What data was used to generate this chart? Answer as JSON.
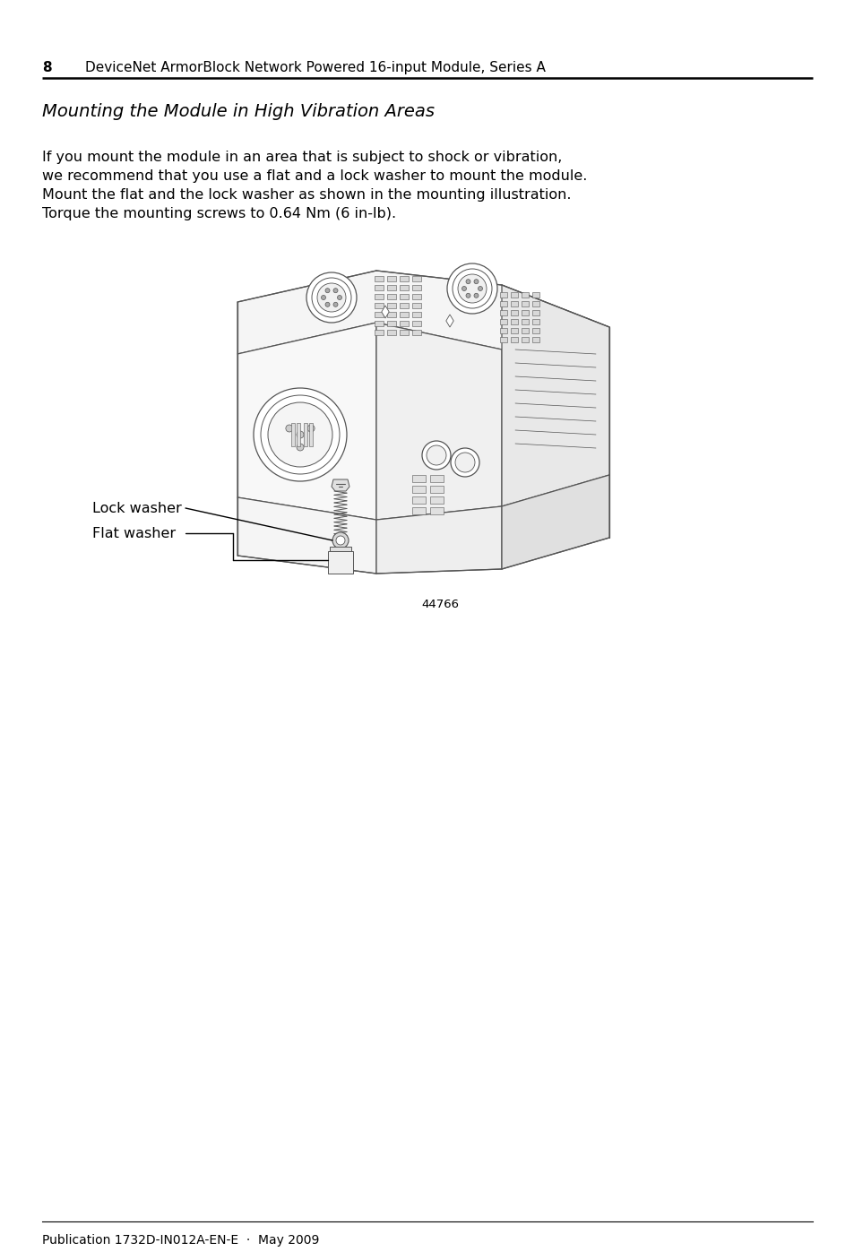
{
  "page_number": "8",
  "header_text": "DeviceNet ArmorBlock Network Powered 16-input Module, Series A",
  "title": "Mounting the Module in High Vibration Areas",
  "body_text": [
    "If you mount the module in an area that is subject to shock or vibration,",
    "we recommend that you use a flat and a lock washer to mount the module.",
    "Mount the flat and the lock washer as shown in the mounting illustration.",
    "Torque the mounting screws to 0.64 Nm (6 in-lb)."
  ],
  "label1": "Lock washer",
  "label2": "Flat washer",
  "figure_number": "44766",
  "footer_text": "Publication 1732D-IN012A-EN-E  ·  May 2009",
  "bg_color": "#ffffff",
  "text_color": "#000000",
  "line_color": "#555555",
  "title_font_size": 14,
  "body_font_size": 11.5,
  "header_font_size": 11,
  "footer_font_size": 10
}
